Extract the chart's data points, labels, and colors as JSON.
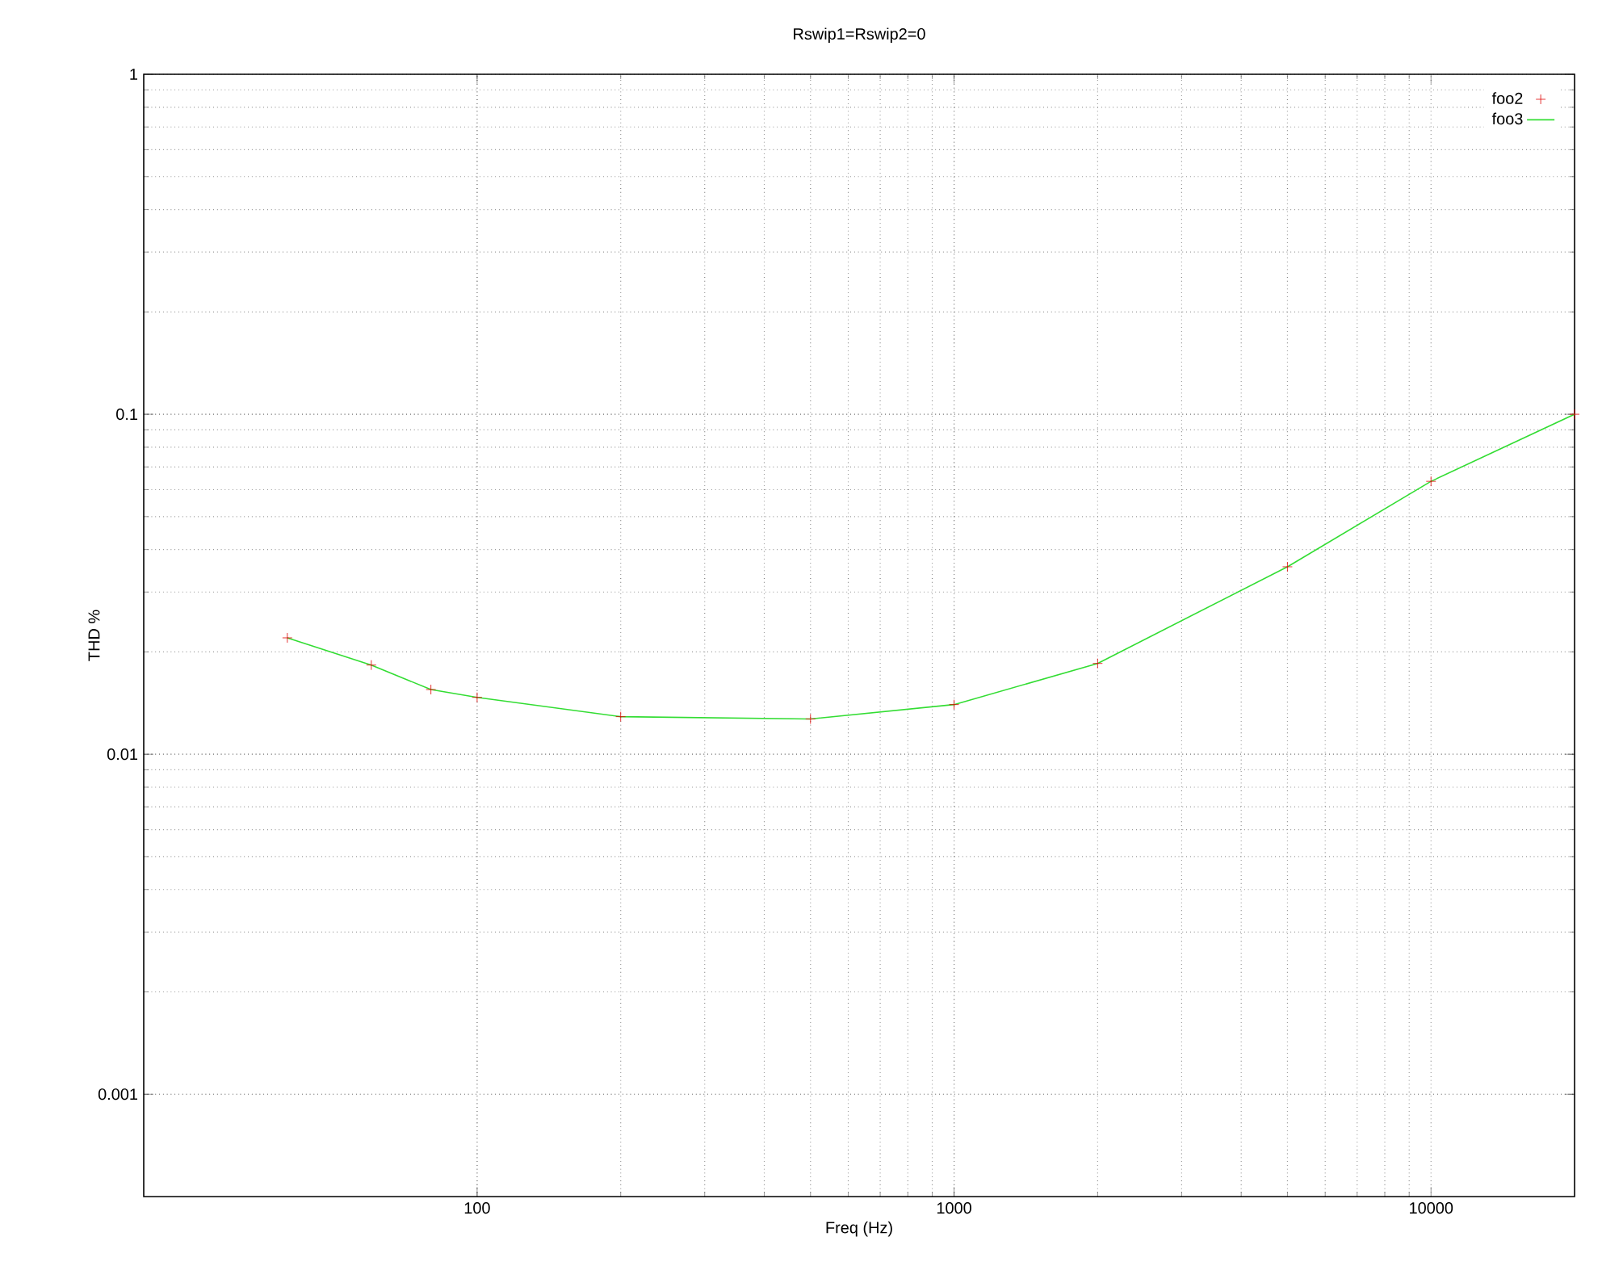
{
  "chart_data": {
    "type": "line",
    "title": "Rswip1=Rswip2=0",
    "xlabel": "Freq (Hz)",
    "ylabel": "THD %",
    "x": [
      40,
      60,
      80,
      100,
      200,
      500,
      1000,
      2000,
      5000,
      10000,
      20000
    ],
    "series": [
      {
        "name": "foo2",
        "type": "scatter",
        "marker": "cross",
        "color": "#e00000",
        "values": [
          0.022,
          0.0183,
          0.0155,
          0.0147,
          0.0129,
          0.0127,
          0.014,
          0.0185,
          0.0356,
          0.0635,
          0.1
        ]
      },
      {
        "name": "foo3",
        "marker": "none",
        "color": "#33dd33",
        "values": [
          0.022,
          0.0183,
          0.0155,
          0.0147,
          0.0129,
          0.0127,
          0.014,
          0.0185,
          0.0356,
          0.0635,
          0.1
        ]
      }
    ],
    "log": "xy",
    "xlim": [
      20,
      20000
    ],
    "ylim": [
      0.0005,
      1
    ],
    "xticks": [
      100,
      1000,
      10000
    ],
    "yticks": [
      0.001,
      0.01,
      0.1,
      1
    ],
    "grid": true,
    "legend": "top right"
  }
}
